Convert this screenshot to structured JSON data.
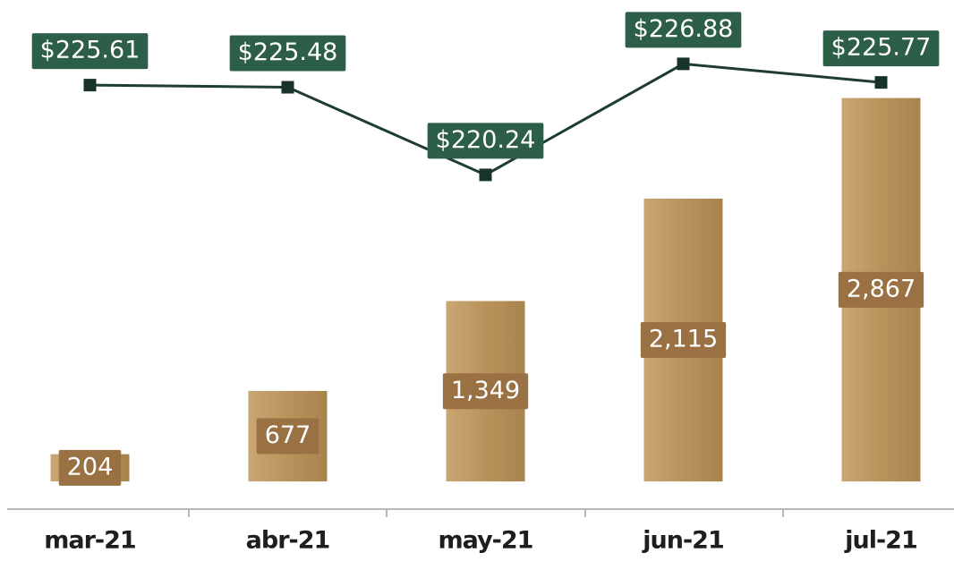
{
  "chart_data": {
    "type": "bar-line",
    "categories": [
      "mar-21",
      "abr-21",
      "may-21",
      "jun-21",
      "jul-21"
    ],
    "series": [
      {
        "type": "bar",
        "color": "#b8935c",
        "label_color": "#9a7142",
        "values": [
          204,
          677,
          1349,
          2115,
          2867
        ],
        "value_labels": [
          "204",
          "677",
          "1,349",
          "2,115",
          "2,867"
        ]
      },
      {
        "type": "line",
        "axis": "y2",
        "color": "#1f3d2e",
        "label_color": "#2d5e47",
        "values": [
          225.61,
          225.48,
          220.24,
          226.88,
          225.77
        ],
        "value_labels": [
          "$225.61",
          "$225.48",
          "$220.24",
          "$226.88",
          "$225.77"
        ]
      }
    ],
    "ylim": [
      -200,
      3600
    ],
    "y2lim": [
      200.3,
      230.7
    ]
  }
}
